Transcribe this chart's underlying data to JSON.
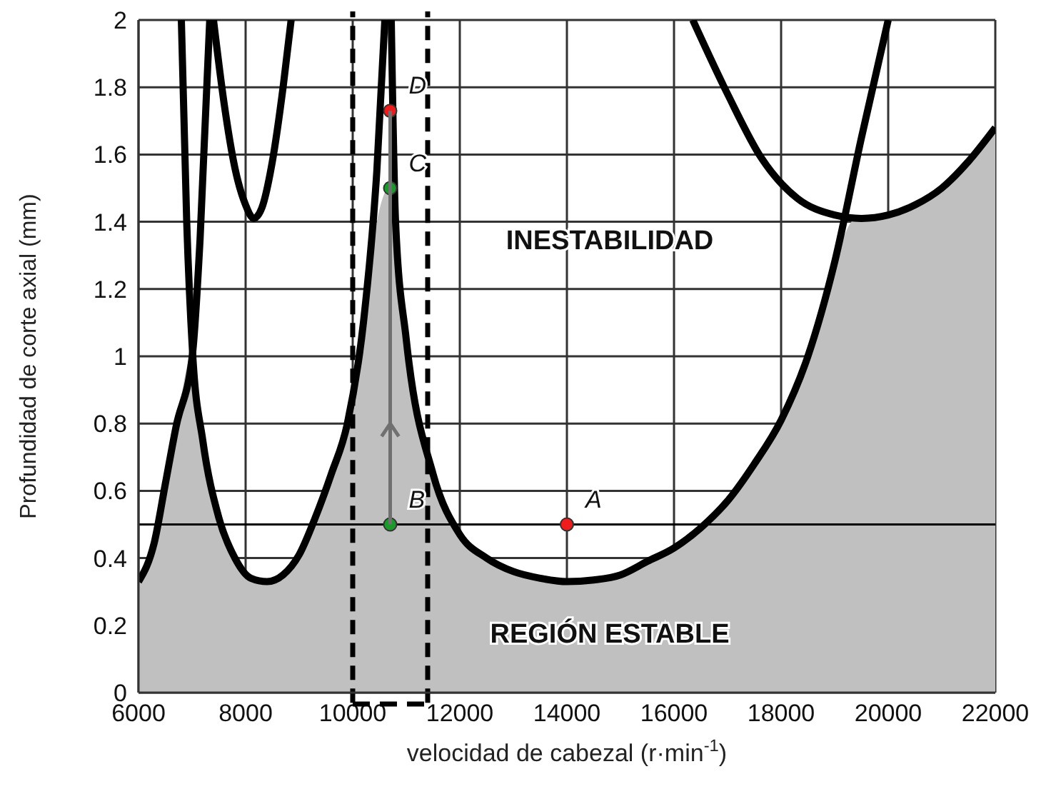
{
  "chart_data": {
    "type": "line",
    "xlabel": "velocidad de cabezal (r·min$^{-1}$)",
    "ylabel": "Profundidad de corte axial (mm)",
    "xlim": [
      6000,
      22000
    ],
    "xticks": [
      6000,
      8000,
      10000,
      12000,
      14000,
      16000,
      18000,
      20000,
      22000
    ],
    "ylim": [
      0,
      2
    ],
    "yticks": [
      0,
      0.2,
      0.4,
      0.6,
      0.8,
      1,
      1.2,
      1.4,
      1.6,
      1.8,
      2
    ],
    "grid": true,
    "legend": false,
    "line_style": "solid",
    "marker": "none",
    "series": [
      {
        "type": "area",
        "color": "#c0c0c0",
        "x": [
          6000,
          6300,
          6500,
          6700,
          7010,
          7200,
          7500,
          7800,
          8100,
          8400,
          8700,
          9000,
          9300,
          9600,
          9900,
          10200,
          10450,
          10680,
          10800,
          11000,
          11500,
          12000,
          12500,
          13000,
          13500,
          14000,
          14500,
          15000,
          15500,
          16000,
          16500,
          17000,
          17500,
          18000,
          18500,
          19000,
          19400,
          19500,
          20000,
          20500,
          21000,
          21500,
          22000
        ],
        "values": [
          0.33,
          0.45,
          0.62,
          0.79,
          1.01,
          0.75,
          0.52,
          0.4,
          0.34,
          0.33,
          0.35,
          0.41,
          0.52,
          0.65,
          0.8,
          1.1,
          1.4,
          1.5,
          1.38,
          1.05,
          0.65,
          0.47,
          0.4,
          0.36,
          0.34,
          0.33,
          0.335,
          0.35,
          0.39,
          0.43,
          0.49,
          0.57,
          0.68,
          0.81,
          1,
          1.28,
          1.41,
          1.41,
          1.42,
          1.45,
          1.5,
          1.58,
          1.68
        ]
      },
      {
        "color": "#000000",
        "x": [
          6000,
          6300,
          6500,
          6700,
          7010,
          7150,
          7330
        ],
        "values": [
          0.33,
          0.45,
          0.62,
          0.79,
          1.01,
          1.35,
          2
        ]
      },
      {
        "color": "#000000",
        "x": [
          6800,
          6900,
          7010,
          7200,
          7500,
          7800,
          8100,
          8400,
          8700,
          9000,
          9300,
          9600,
          9900,
          10200,
          10450,
          10600
        ],
        "values": [
          2,
          1.4,
          1.01,
          0.75,
          0.52,
          0.4,
          0.34,
          0.33,
          0.35,
          0.41,
          0.52,
          0.65,
          0.8,
          1.1,
          1.55,
          2
        ]
      },
      {
        "color": "#000000",
        "x": [
          7400,
          7600,
          7800,
          8000,
          8150,
          8300,
          8500,
          8700,
          8850
        ],
        "values": [
          2,
          1.75,
          1.56,
          1.45,
          1.41,
          1.44,
          1.58,
          1.8,
          2
        ]
      },
      {
        "color": "#000000",
        "x": [
          10720,
          10800,
          11000,
          11500,
          12000,
          12500,
          13000,
          13500,
          14000,
          14500,
          15000,
          15500,
          16000,
          16500,
          17000,
          17500,
          18000,
          18500,
          19000,
          19500,
          20000
        ],
        "values": [
          2,
          1.4,
          1.05,
          0.65,
          0.47,
          0.4,
          0.36,
          0.34,
          0.33,
          0.335,
          0.35,
          0.39,
          0.43,
          0.49,
          0.57,
          0.68,
          0.81,
          1,
          1.28,
          1.65,
          2
        ]
      },
      {
        "color": "#000000",
        "x": [
          16350,
          17000,
          17630,
          18300,
          19000,
          19500,
          20000,
          20500,
          21000,
          21500,
          22000
        ],
        "values": [
          2,
          1.78,
          1.59,
          1.47,
          1.42,
          1.41,
          1.42,
          1.45,
          1.5,
          1.58,
          1.68
        ]
      },
      {
        "type": "scatter",
        "marker": "circle",
        "x": [
          14000,
          10700,
          10700,
          10700
        ],
        "values": [
          0.5,
          0.5,
          1.5,
          1.73
        ],
        "value_labels": [
          "A",
          "B",
          "C",
          "D"
        ],
        "colors": [
          "#ee1c1c",
          "#1a9a2a",
          "#1a9a2a",
          "#ee1c1c"
        ]
      }
    ],
    "ref_lines": [
      {
        "axis": "y",
        "value": 0.5,
        "color": "#000000"
      },
      {
        "axis": "x",
        "value": 10000,
        "color": "#000000",
        "line_style": "dashed"
      },
      {
        "axis": "x",
        "value": 11400,
        "color": "#000000",
        "line_style": "dashed"
      }
    ],
    "annotations": [
      "INESTABILIDAD",
      "REGIÓN ESTABLE"
    ]
  }
}
